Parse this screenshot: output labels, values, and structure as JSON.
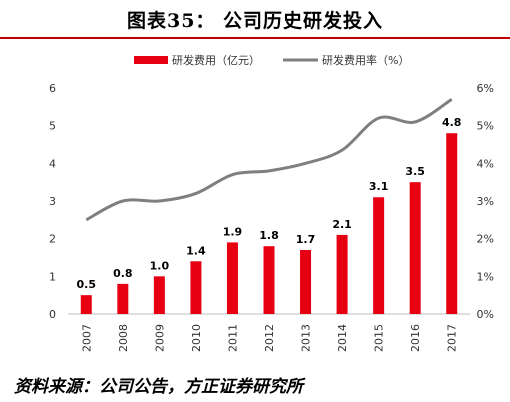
{
  "header": {
    "title": "图表35：   公司历史研发投入"
  },
  "footer": {
    "source": "资料来源：公司公告，方正证券研究所"
  },
  "chart_data": {
    "type": "bar",
    "categories": [
      "2007",
      "2008",
      "2009",
      "2010",
      "2011",
      "2012",
      "2013",
      "2014",
      "2015",
      "2016",
      "2017"
    ],
    "series": [
      {
        "name": "研发费用（亿元）",
        "type": "bar",
        "axis": "left",
        "color": "#e60012",
        "values": [
          0.5,
          0.8,
          1.0,
          1.4,
          1.9,
          1.8,
          1.7,
          2.1,
          3.1,
          3.5,
          4.8
        ],
        "labels": [
          "0.5",
          "0.8",
          "1.0",
          "1.4",
          "1.9",
          "1.8",
          "1.7",
          "2.1",
          "3.1",
          "3.5",
          "4.8"
        ]
      },
      {
        "name": "研发费用率（%）",
        "type": "line",
        "axis": "right",
        "color": "#7f7f7f",
        "values": [
          2.5,
          3.0,
          3.0,
          3.2,
          3.7,
          3.8,
          4.0,
          4.35,
          5.2,
          5.1,
          5.7
        ]
      }
    ],
    "y_left": {
      "ylim": [
        0,
        6
      ],
      "ticks": [
        "0",
        "1",
        "2",
        "3",
        "4",
        "5",
        "6"
      ]
    },
    "y_right": {
      "ylim": [
        0,
        6
      ],
      "ticks": [
        "0%",
        "1%",
        "2%",
        "3%",
        "4%",
        "5%",
        "6%"
      ]
    },
    "legend": "top-center",
    "grid": false
  }
}
